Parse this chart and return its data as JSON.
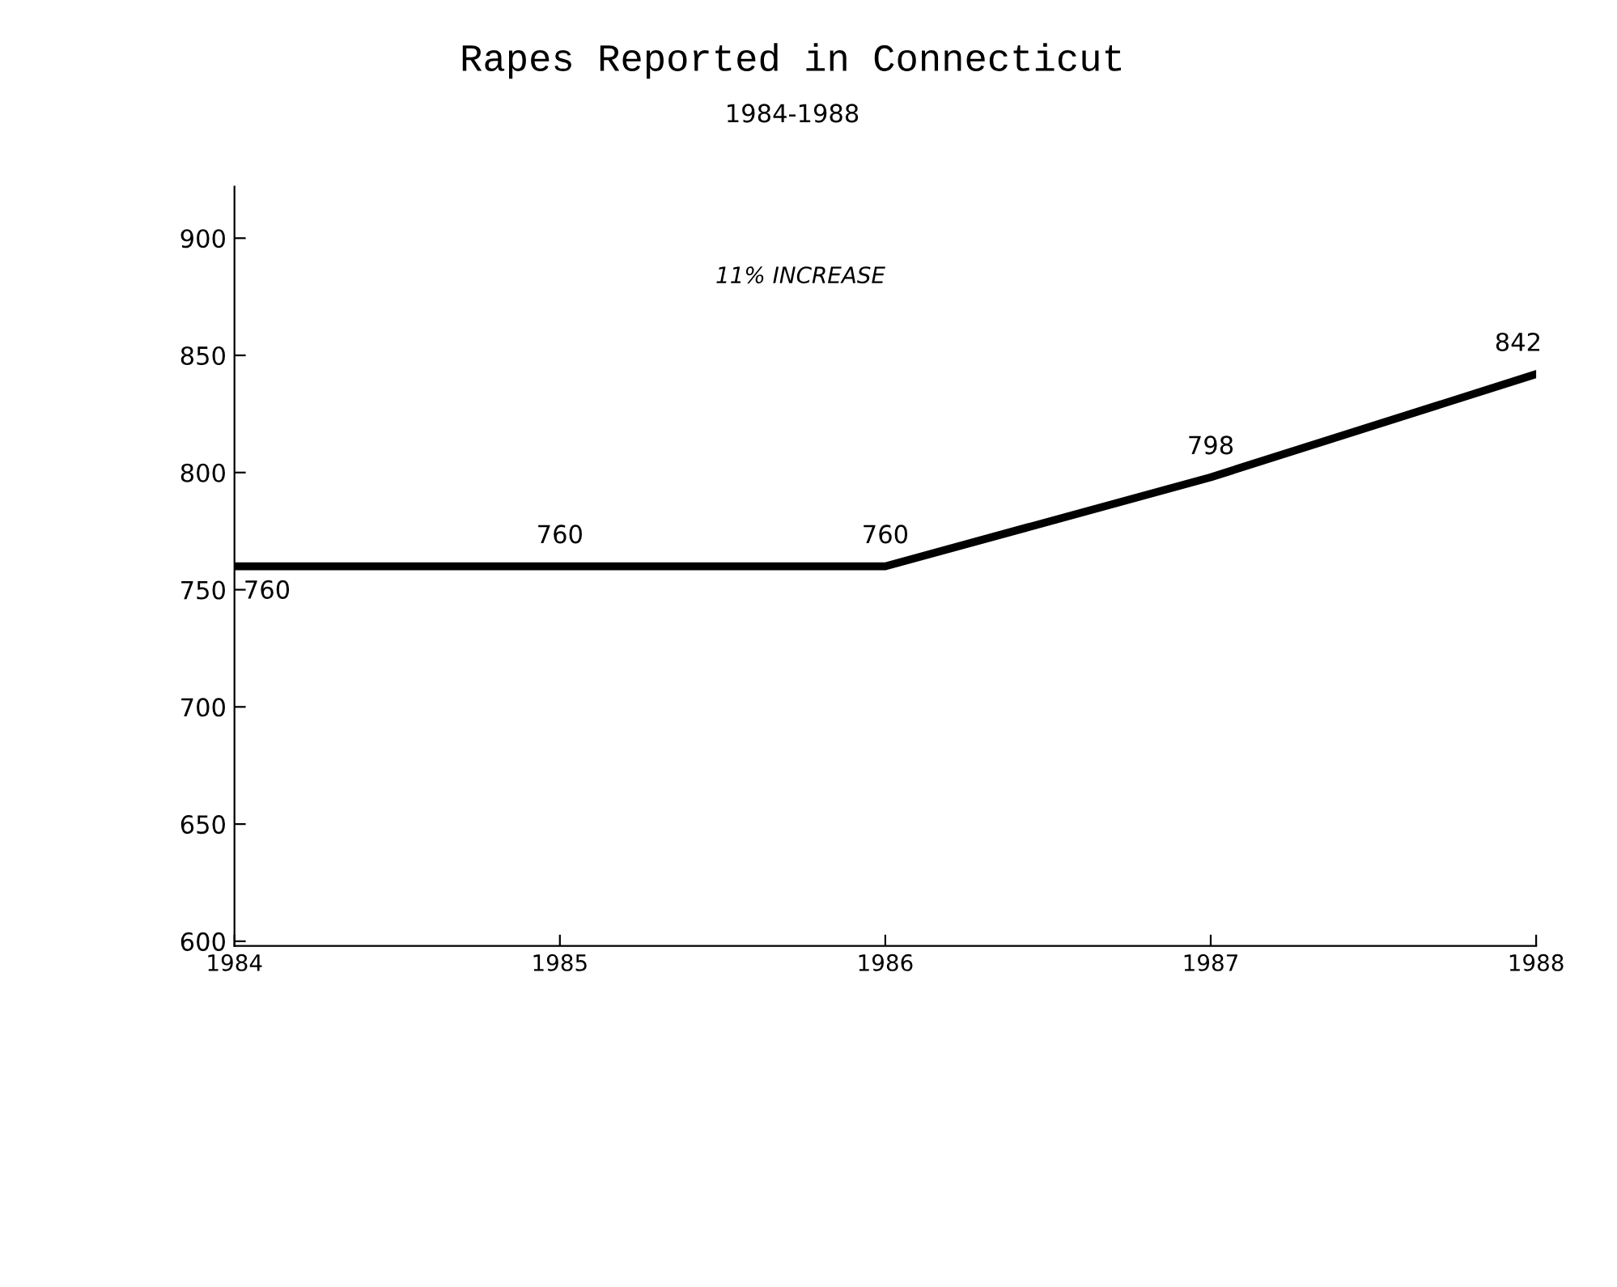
{
  "chart_data": {
    "type": "line",
    "title": "Rapes Reported in Connecticut",
    "subtitle": "1984-1988",
    "x": [
      1984,
      1985,
      1986,
      1987,
      1988
    ],
    "series": [
      {
        "color": "#000000",
        "values": [
          760,
          760,
          760,
          798,
          842
        ]
      }
    ],
    "xlim": [
      1984,
      1988
    ],
    "xticks": [
      1984,
      1985,
      1986,
      1987,
      1988
    ],
    "ylim": [
      598,
      922
    ],
    "yticks": [
      600,
      650,
      700,
      750,
      800,
      850,
      900
    ],
    "annotations": [
      "11% INCREASE"
    ],
    "data_labels": true,
    "grid": false,
    "legend": false,
    "marker": "none",
    "line_style": "solid"
  }
}
